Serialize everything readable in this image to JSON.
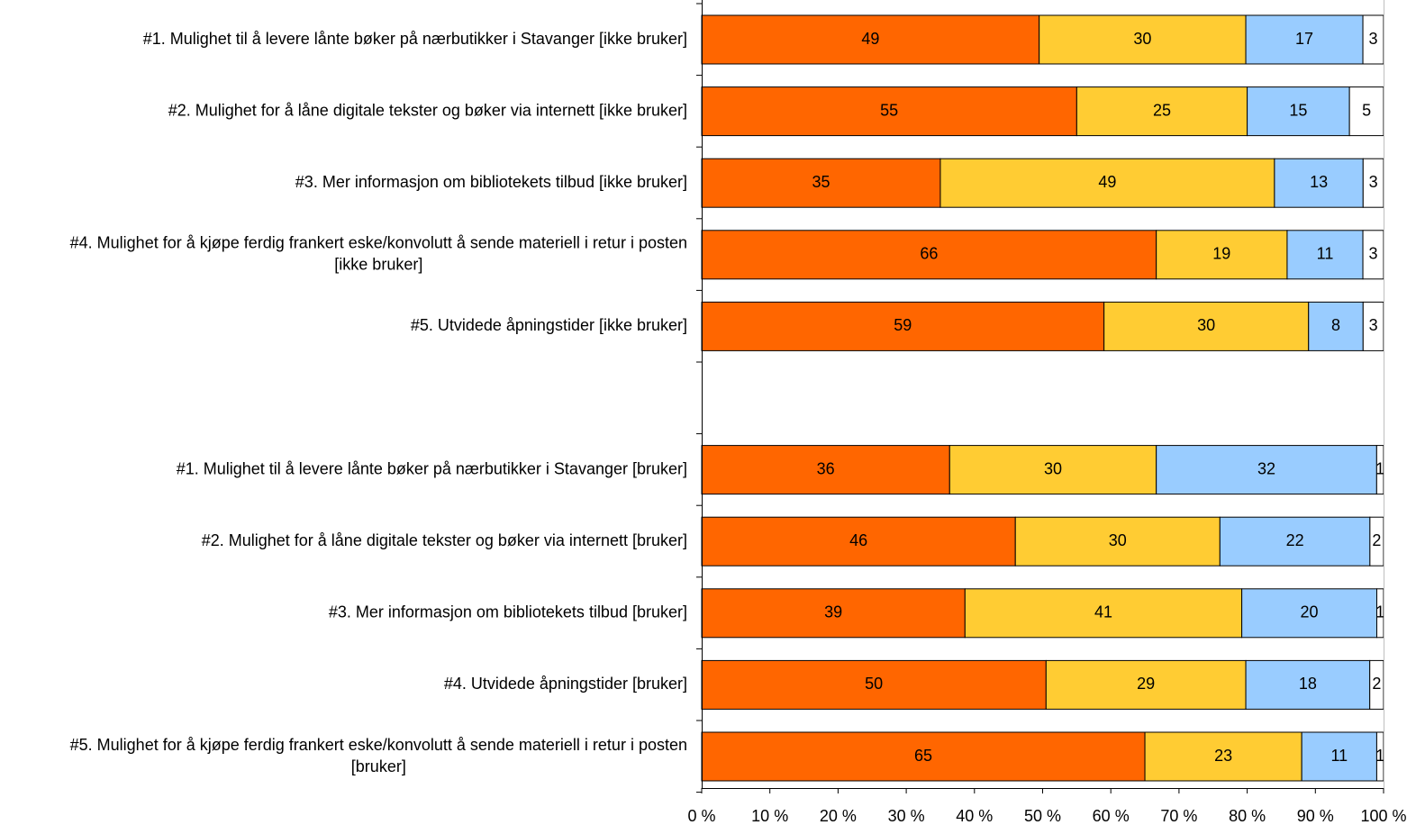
{
  "chart_data": {
    "type": "bar",
    "orientation": "horizontal",
    "stacked": "percent",
    "title": "",
    "xlabel": "",
    "ylabel": "",
    "xlim": [
      0,
      100
    ],
    "x_ticks": [
      "0 %",
      "10 %",
      "20 %",
      "30 %",
      "40 %",
      "50 %",
      "60 %",
      "70 %",
      "80 %",
      "90 %",
      "100 %"
    ],
    "grid": false,
    "legend": "none",
    "series_colors": [
      "#ff6600",
      "#ffcc33",
      "#99ccff",
      "#ffffff"
    ],
    "rows": [
      {
        "label": [
          "#1. Mulighet til å levere lånte bøker på nærbutikker i Stavanger [ikke bruker]"
        ],
        "values": [
          49,
          30,
          17,
          3
        ]
      },
      {
        "label": [
          "#2. Mulighet for å låne digitale tekster og bøker via internett [ikke bruker]"
        ],
        "values": [
          55,
          25,
          15,
          5
        ]
      },
      {
        "label": [
          "#3. Mer informasjon om bibliotekets tilbud [ikke bruker]"
        ],
        "values": [
          35,
          49,
          13,
          3
        ]
      },
      {
        "label": [
          "#4. Mulighet for å kjøpe ferdig frankert eske/konvolutt å sende materiell i retur i posten",
          "[ikke bruker]"
        ],
        "values": [
          66,
          19,
          11,
          3
        ]
      },
      {
        "label": [
          "#5. Utvidede åpningstider [ikke bruker]"
        ],
        "values": [
          59,
          30,
          8,
          3
        ]
      },
      {
        "label": [],
        "values": []
      },
      {
        "label": [
          "#1. Mulighet til å levere lånte bøker på nærbutikker i Stavanger [bruker]"
        ],
        "values": [
          36,
          30,
          32,
          1
        ]
      },
      {
        "label": [
          "#2. Mulighet for å låne digitale tekster og bøker via internett [bruker]"
        ],
        "values": [
          46,
          30,
          22,
          2
        ]
      },
      {
        "label": [
          "#3. Mer informasjon om bibliotekets tilbud [bruker]"
        ],
        "values": [
          39,
          41,
          20,
          1
        ]
      },
      {
        "label": [
          "#4. Utvidede åpningstider [bruker]"
        ],
        "values": [
          50,
          29,
          18,
          2
        ]
      },
      {
        "label": [
          "#5. Mulighet for å kjøpe ferdig frankert eske/konvolutt å sende materiell i retur i posten",
          "[bruker]"
        ],
        "values": [
          65,
          23,
          11,
          1
        ]
      }
    ]
  }
}
